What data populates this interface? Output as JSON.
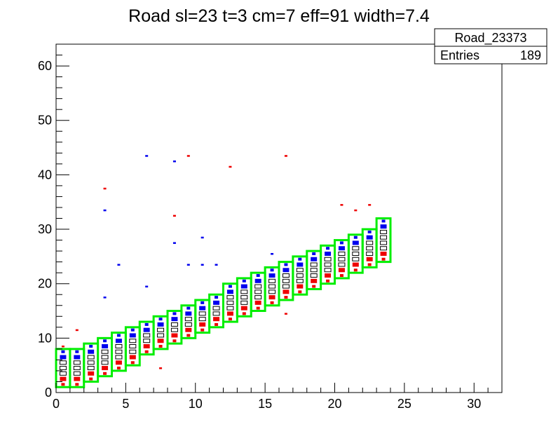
{
  "chart_data": {
    "type": "heatmap",
    "title": "Road sl=23 t=3 cm=7 eff=91 width=7.4",
    "xlabel": "",
    "ylabel": "",
    "xlim": [
      0,
      32
    ],
    "ylim": [
      0,
      64
    ],
    "x_ticks": [
      0,
      5,
      10,
      15,
      20,
      25,
      30
    ],
    "y_ticks": [
      0,
      10,
      20,
      30,
      40,
      50,
      60
    ],
    "grid": false,
    "stats_box": {
      "name": "Road_23373",
      "entries_label": "Entries",
      "entries_value": "189"
    },
    "colors": {
      "road_outline": "#00ee00",
      "hit_red": "#ee0000",
      "hit_blue": "#0000ee",
      "hit_black": "#000000"
    },
    "road_bins": [
      [
        0,
        1,
        8
      ],
      [
        1,
        1,
        8
      ],
      [
        2,
        2,
        9
      ],
      [
        3,
        3,
        10
      ],
      [
        4,
        4,
        11
      ],
      [
        5,
        5,
        12
      ],
      [
        6,
        7,
        13
      ],
      [
        7,
        8,
        14
      ],
      [
        8,
        9,
        15
      ],
      [
        9,
        10,
        16
      ],
      [
        10,
        11,
        17
      ],
      [
        11,
        12,
        18
      ],
      [
        12,
        13,
        20
      ],
      [
        13,
        14,
        21
      ],
      [
        14,
        15,
        22
      ],
      [
        15,
        16,
        23
      ],
      [
        16,
        17,
        24
      ],
      [
        17,
        18,
        25
      ],
      [
        18,
        19,
        26
      ],
      [
        19,
        20,
        27
      ],
      [
        20,
        21,
        28
      ],
      [
        21,
        22,
        29
      ],
      [
        22,
        23,
        30
      ],
      [
        23,
        24,
        32
      ]
    ],
    "stray_hits": [
      {
        "x": 0.5,
        "y": 8.5,
        "c": "red"
      },
      {
        "x": 1.5,
        "y": 11.5,
        "c": "red"
      },
      {
        "x": 3.5,
        "y": 37.5,
        "c": "red"
      },
      {
        "x": 3.5,
        "y": 33.5,
        "c": "blue"
      },
      {
        "x": 3.5,
        "y": 17.5,
        "c": "blue"
      },
      {
        "x": 4.5,
        "y": 23.5,
        "c": "blue"
      },
      {
        "x": 6.5,
        "y": 43.5,
        "c": "blue"
      },
      {
        "x": 6.5,
        "y": 19.5,
        "c": "blue"
      },
      {
        "x": 7.5,
        "y": 4.5,
        "c": "red"
      },
      {
        "x": 8.5,
        "y": 42.5,
        "c": "blue"
      },
      {
        "x": 8.5,
        "y": 32.5,
        "c": "red"
      },
      {
        "x": 8.5,
        "y": 27.5,
        "c": "blue"
      },
      {
        "x": 9.5,
        "y": 43.5,
        "c": "red"
      },
      {
        "x": 9.5,
        "y": 23.5,
        "c": "blue"
      },
      {
        "x": 10.5,
        "y": 28.5,
        "c": "blue"
      },
      {
        "x": 10.5,
        "y": 23.5,
        "c": "blue"
      },
      {
        "x": 11.5,
        "y": 23.5,
        "c": "blue"
      },
      {
        "x": 12.5,
        "y": 41.5,
        "c": "red"
      },
      {
        "x": 15.5,
        "y": 25.5,
        "c": "blue"
      },
      {
        "x": 16.5,
        "y": 43.5,
        "c": "red"
      },
      {
        "x": 16.5,
        "y": 14.5,
        "c": "red"
      },
      {
        "x": 20.5,
        "y": 34.5,
        "c": "red"
      },
      {
        "x": 21.5,
        "y": 33.5,
        "c": "red"
      },
      {
        "x": 22.5,
        "y": 34.5,
        "c": "red"
      }
    ]
  }
}
